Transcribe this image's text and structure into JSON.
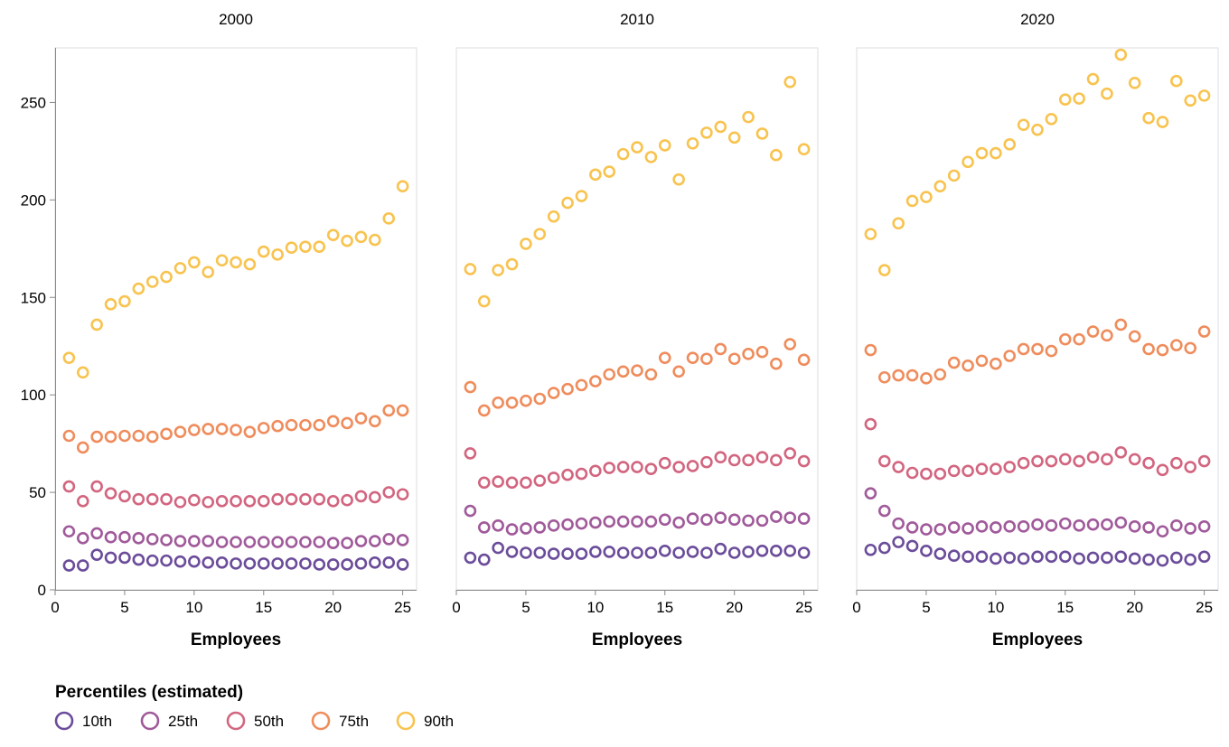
{
  "chart_data": {
    "type": "scatter",
    "facet_field": "year",
    "xlabel": "Employees",
    "ylabel": "",
    "xlim": [
      0,
      26
    ],
    "ylim": [
      0,
      278
    ],
    "x_ticks": [
      0,
      5,
      10,
      15,
      20,
      25
    ],
    "y_ticks": [
      0,
      50,
      100,
      150,
      200,
      250
    ],
    "grid": false,
    "legend": {
      "title": "Percentiles (estimated)",
      "placement": "bottom-left",
      "items": [
        {
          "label": "10th",
          "color": "#6b4c9a"
        },
        {
          "label": "25th",
          "color": "#a05a9a"
        },
        {
          "label": "50th",
          "color": "#d2657f"
        },
        {
          "label": "75th",
          "color": "#ef8c5c"
        },
        {
          "label": "90th",
          "color": "#f8c34f"
        }
      ]
    },
    "x": [
      1,
      2,
      3,
      4,
      5,
      6,
      7,
      8,
      9,
      10,
      11,
      12,
      13,
      14,
      15,
      16,
      17,
      18,
      19,
      20,
      21,
      22,
      23,
      24,
      25
    ],
    "panels": [
      {
        "title": "2000",
        "series": [
          {
            "name": "10th",
            "values": [
              12.5,
              12.5,
              18,
              16.5,
              16.5,
              15.5,
              15,
              15,
              14.5,
              14.5,
              14,
              14,
              13.5,
              13.5,
              13.5,
              13.5,
              13.5,
              13.5,
              13,
              13,
              13,
              13.5,
              14,
              14,
              13
            ]
          },
          {
            "name": "25th",
            "values": [
              30,
              26.5,
              29,
              27,
              27,
              26.5,
              26,
              25.5,
              25,
              25,
              25,
              24.5,
              24.5,
              24.5,
              24.5,
              24.5,
              24.5,
              24.5,
              24.5,
              24,
              24,
              25,
              25,
              26,
              25.5
            ]
          },
          {
            "name": "50th",
            "values": [
              53,
              45.5,
              53,
              49.5,
              48,
              46.5,
              46.5,
              46.5,
              45,
              46,
              45,
              45.5,
              45.5,
              45.5,
              45.5,
              46.5,
              46.5,
              46.5,
              46.5,
              45.5,
              46,
              48,
              47.5,
              50,
              49
            ]
          },
          {
            "name": "75th",
            "values": [
              79,
              73,
              78.5,
              78.5,
              79,
              79,
              78.5,
              80,
              81,
              82,
              82.5,
              82.5,
              82,
              81,
              83,
              84,
              84.5,
              84.5,
              84.5,
              86.5,
              85.5,
              88,
              86.5,
              92,
              92
            ]
          },
          {
            "name": "90th",
            "values": [
              119,
              111.5,
              136,
              146.5,
              148,
              154.5,
              158,
              160.5,
              165,
              168,
              163,
              169,
              168,
              167,
              173.5,
              172,
              175.5,
              176,
              176,
              182,
              179,
              181,
              179.5,
              190.5,
              207
            ]
          }
        ]
      },
      {
        "title": "2010",
        "series": [
          {
            "name": "10th",
            "values": [
              16.5,
              15.5,
              21.5,
              19.5,
              19,
              19,
              18.5,
              18.5,
              18.5,
              19.5,
              19.5,
              19,
              19,
              19,
              20,
              19,
              19.5,
              19,
              21,
              19,
              19.5,
              20,
              20,
              20,
              19
            ]
          },
          {
            "name": "25th",
            "values": [
              40.5,
              32,
              33,
              31,
              31.5,
              32,
              33,
              33.5,
              34,
              34.5,
              35,
              35,
              35,
              35,
              36,
              34.5,
              36.5,
              36,
              37,
              36,
              35.5,
              35.5,
              37.5,
              37,
              36.5
            ]
          },
          {
            "name": "50th",
            "values": [
              70,
              55,
              55.5,
              55,
              55,
              56,
              57.5,
              59,
              59.5,
              61,
              62.5,
              63,
              63,
              62,
              65,
              63,
              63.5,
              65.5,
              68,
              66.5,
              66.5,
              68,
              66.5,
              70,
              66
            ]
          },
          {
            "name": "75th",
            "values": [
              104,
              92,
              96,
              96,
              97,
              98,
              101,
              103,
              105,
              107,
              110.5,
              112,
              112.5,
              110.5,
              119,
              112,
              119,
              118.5,
              123.5,
              118.5,
              121,
              122,
              116,
              126,
              118
            ]
          },
          {
            "name": "90th",
            "values": [
              164.5,
              148,
              164,
              167,
              177.5,
              182.5,
              191.5,
              198.5,
              202,
              213,
              214.5,
              223.5,
              227,
              222,
              228,
              210.5,
              229,
              234.5,
              237.5,
              232,
              242.5,
              234,
              223,
              260.5,
              226
            ]
          }
        ]
      },
      {
        "title": "2020",
        "series": [
          {
            "name": "10th",
            "values": [
              20.5,
              21.5,
              24.5,
              22.5,
              20,
              18.5,
              17.5,
              17,
              17,
              16,
              16.5,
              16,
              17,
              17,
              17,
              16,
              16.5,
              16.5,
              17,
              16,
              15.5,
              15,
              16.5,
              15.5,
              17
            ]
          },
          {
            "name": "25th",
            "values": [
              49.5,
              40.5,
              34,
              32,
              31,
              31,
              32,
              31.5,
              32.5,
              32,
              32.5,
              32.5,
              33.5,
              33,
              34,
              33,
              33.5,
              33.5,
              34.5,
              32.5,
              32,
              30,
              33,
              31.5,
              32.5
            ]
          },
          {
            "name": "50th",
            "values": [
              85,
              66,
              63,
              60,
              59.5,
              59.5,
              61,
              61,
              62,
              62,
              63,
              65,
              66,
              66,
              67,
              66,
              68,
              67,
              70.5,
              67,
              65,
              61.5,
              65,
              63,
              66
            ]
          },
          {
            "name": "75th",
            "values": [
              123,
              109,
              110,
              110,
              108.5,
              110.5,
              116.5,
              115,
              117.5,
              116,
              120,
              123.5,
              123.5,
              122.5,
              128.5,
              128.5,
              132.5,
              130.5,
              136,
              130,
              123.5,
              123,
              125.5,
              124,
              132.5
            ]
          },
          {
            "name": "90th",
            "values": [
              182.5,
              164,
              188,
              199.5,
              201.5,
              207,
              212.5,
              219.5,
              224,
              224,
              228.5,
              238.5,
              236,
              241.5,
              251.5,
              252,
              262,
              254.5,
              274.5,
              260,
              242,
              240,
              261,
              251,
              253.5
            ]
          }
        ]
      }
    ]
  }
}
